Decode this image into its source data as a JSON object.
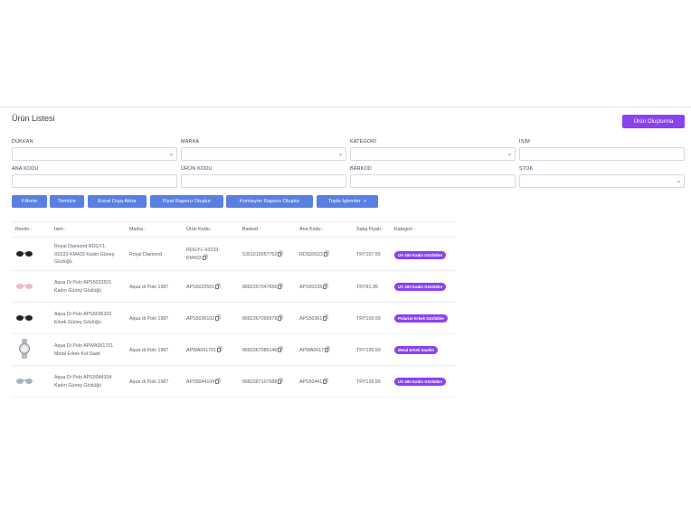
{
  "header": {
    "title": "Ürün Listesi",
    "create_label": "Ürün Oluşturma"
  },
  "filters": {
    "dukkan": "DÜKKAN",
    "marka": "MARKA",
    "kategori": "KATEGORİ",
    "isim": "İSİM",
    "ana_kodu": "ANA KODU",
    "urun_kodu": "ÜRÜN KODU",
    "barkod": "BARKOD",
    "stok": "STOK"
  },
  "actions": {
    "filtrele": "Filtrele",
    "temizle": "Temizle",
    "excel": "Excel Dışa Aktar",
    "fiyat": "Fiyat Raporu Oluştur",
    "komisyon": "Komisyon Raporu Oluştur",
    "toplu": "Toplu İşlemler"
  },
  "columns": {
    "resim": "Resim",
    "isim": "İsim",
    "marka": "Marka",
    "urun_kodu": "Ürün Kodu",
    "barkod": "Barkod",
    "ana_kodu": "Ana Kodu",
    "fiyat": "Satış Fiyatı",
    "kategori": "Kategori"
  },
  "rows": [
    {
      "image": "sunglasses-black-icon",
      "name1": "Royal Diamond RDGY1-",
      "name2": "X0233-KM433 Kadın Güneş",
      "name3": "Gözlüğü",
      "brand": "Royal Diamond",
      "code1": "RDGY1-X0233-",
      "code2": "KM433",
      "barcode": "5301010057752",
      "main_code": "RDS50023",
      "price": "TRY107.99",
      "category": "UV 400 Kadın Gözlükler"
    },
    {
      "image": "sunglasses-pink-icon",
      "name1": "Aqua Di Polo APS5023501",
      "name2": "Kadın Güneş Gözlüğü",
      "name3": "",
      "brand": "Aqua di Polo 1987",
      "code1": "APS5023501",
      "code2": "",
      "barcode": "8682367047656",
      "main_code": "APS50235",
      "price": "TRY91.99",
      "category": "UV 400 Kadın Gözlükler"
    },
    {
      "image": "sunglasses-black-icon",
      "name1": "Aqua Di Polo APS5036102",
      "name2": "Erkek Güneş Gözlüğü",
      "name3": "",
      "brand": "Aqua di Polo 1987",
      "code1": "APS5036102",
      "code2": "",
      "barcode": "8682367095978",
      "main_code": "APS50361",
      "price": "TRY109.99",
      "category": "Polarize Erkek Gözlükler"
    },
    {
      "image": "wristwatch-icon",
      "name1": "Aqua Di Polo APWA061701",
      "name2": "Metal Erkek Kol Saati",
      "name3": "",
      "brand": "Aqua di Polo 1987",
      "code1": "APWA061701",
      "code2": "",
      "barcode": "8682367085146",
      "main_code": "APWA0617",
      "price": "TRY139.99",
      "category": "Metal Erkek Saatler"
    },
    {
      "image": "sunglasses-silver-icon",
      "name1": "Aqua Di Polo APS5044104",
      "name2": "Kadın Güneş Gözlüğü",
      "name3": "",
      "brand": "Aqua di Polo 1987",
      "code1": "APS5044104",
      "code2": "",
      "barcode": "8682367107688",
      "main_code": "APS50441",
      "price": "TRY139.99",
      "category": "UV 400 Kadın Gözlükler"
    }
  ]
}
